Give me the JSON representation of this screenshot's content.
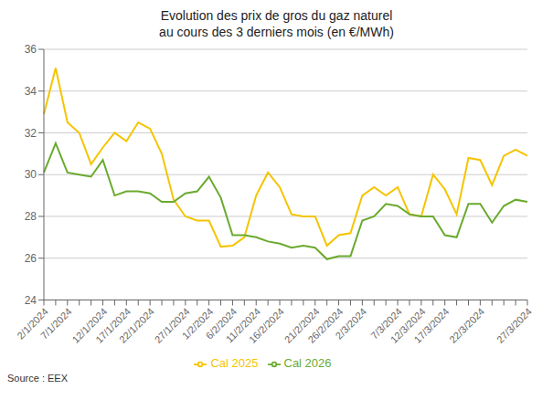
{
  "chart_data": {
    "type": "line",
    "title": "Evolution des prix de gros du gaz naturel",
    "subtitle": "au cours des 3 derniers mois (en €/MWh)",
    "annotations": [
      "Source : EEX"
    ],
    "categories": [
      "2/1/2024",
      null,
      "7/1/2024",
      null,
      null,
      "12/1/2024",
      null,
      "17/1/2024",
      null,
      "22/1/2024",
      null,
      null,
      "27/1/2024",
      null,
      "1/2/2024",
      null,
      "6/2/2024",
      null,
      "11/2/2024",
      null,
      "16/2/2024",
      null,
      null,
      "21/2/2024",
      null,
      "26/2/2024",
      null,
      "2/3/2024",
      null,
      null,
      "7/3/2024",
      null,
      "12/3/2024",
      null,
      "17/3/2024",
      null,
      null,
      "22/3/2024",
      null,
      null,
      null,
      "27/3/2024"
    ],
    "series": [
      {
        "name": "Cal 2025",
        "color": "#F5C400",
        "values": [
          32.9,
          35.1,
          32.5,
          32.0,
          30.5,
          31.3,
          32.0,
          31.6,
          32.5,
          32.2,
          31.0,
          28.8,
          28.0,
          27.8,
          27.8,
          26.55,
          26.6,
          27.0,
          29.0,
          30.1,
          29.4,
          28.1,
          28.0,
          28.0,
          26.6,
          27.1,
          27.2,
          29.0,
          29.4,
          29.0,
          29.4,
          28.1,
          28.0,
          30.0,
          29.3,
          28.1,
          30.8,
          30.7,
          29.5,
          30.9,
          31.2,
          30.9
        ]
      },
      {
        "name": "Cal 2026",
        "color": "#6aaa2e",
        "values": [
          30.1,
          31.5,
          30.1,
          30.0,
          29.9,
          30.7,
          29.0,
          29.2,
          29.2,
          29.1,
          28.7,
          28.7,
          29.1,
          29.2,
          29.9,
          28.9,
          27.1,
          27.1,
          27.0,
          26.8,
          26.7,
          26.5,
          26.6,
          26.5,
          25.95,
          26.1,
          26.1,
          27.8,
          28.0,
          28.6,
          28.5,
          28.1,
          28.0,
          28.0,
          27.1,
          27.0,
          28.6,
          28.6,
          27.7,
          28.5,
          28.8,
          28.7
        ]
      }
    ],
    "ylim": [
      24,
      36
    ],
    "yticks": [
      24,
      26,
      28,
      30,
      32,
      34,
      36
    ],
    "grid": true,
    "legend": "bottom"
  }
}
